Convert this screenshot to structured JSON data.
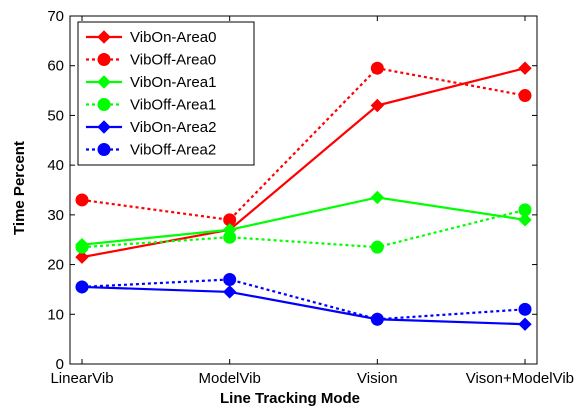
{
  "chart_data": {
    "type": "line",
    "title": "",
    "xlabel": "Line Tracking Mode",
    "ylabel": "Time Percent",
    "categories": [
      "LinearVib",
      "ModelVib",
      "Vision",
      "Vison+ModelVib"
    ],
    "ylim": [
      0,
      70
    ],
    "yticks": [
      0,
      10,
      20,
      30,
      40,
      50,
      60,
      70
    ],
    "grid": false,
    "legend_position": "top-left",
    "series": [
      {
        "name": "VibOn-Area0",
        "color": "#ff0000",
        "line": "solid",
        "marker": "diamond",
        "values": [
          21.5,
          27,
          52,
          59.5
        ]
      },
      {
        "name": "VibOff-Area0",
        "color": "#ff0000",
        "line": "dotted",
        "marker": "circle",
        "values": [
          33,
          29,
          59.5,
          54
        ]
      },
      {
        "name": "VibOn-Area1",
        "color": "#00ff00",
        "line": "solid",
        "marker": "diamond",
        "values": [
          24,
          27,
          33.5,
          29
        ]
      },
      {
        "name": "VibOff-Area1",
        "color": "#00ff00",
        "line": "dotted",
        "marker": "circle",
        "values": [
          23.5,
          25.5,
          23.5,
          31
        ]
      },
      {
        "name": "VibOn-Area2",
        "color": "#0000ff",
        "line": "solid",
        "marker": "diamond",
        "values": [
          15.5,
          14.5,
          9,
          8
        ]
      },
      {
        "name": "VibOff-Area2",
        "color": "#0000ff",
        "line": "dotted",
        "marker": "circle",
        "values": [
          15.5,
          17,
          9,
          11
        ]
      }
    ]
  }
}
